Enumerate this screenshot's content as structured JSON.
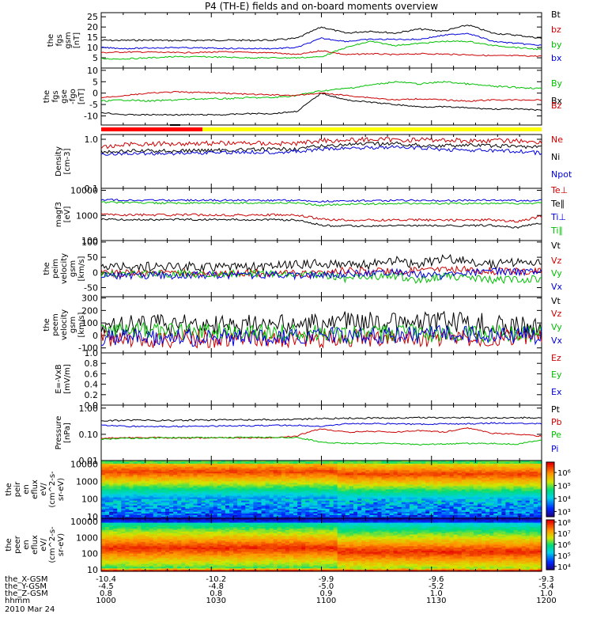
{
  "title": "P4 (TH-E) fields and on-board moments overview",
  "chart_data": [
    {
      "type": "line",
      "ylabel": [
        "the",
        "fgs",
        "gsm",
        "[nT]"
      ],
      "yticks": [
        5,
        10,
        15,
        20,
        25
      ],
      "ylim": [
        0,
        27
      ],
      "scale": "linear",
      "series": [
        {
          "name": "Bt",
          "color": "#000000",
          "y": [
            13.5,
            13.5,
            13.6,
            13.4,
            13.5,
            13.6,
            13.5,
            13.6,
            14.5,
            20,
            17,
            18,
            17,
            19,
            18,
            21,
            17,
            16,
            14.5
          ]
        },
        {
          "name": "bz",
          "color": "#cc0000",
          "y": [
            7.5,
            7.8,
            7.8,
            7.5,
            7.6,
            7.9,
            7.6,
            7.5,
            6.5,
            8.5,
            6.5,
            7,
            6.5,
            7,
            6.8,
            6.5,
            6,
            6,
            5.8
          ]
        },
        {
          "name": "by",
          "color": "#00c000",
          "y": [
            4.5,
            4.5,
            5,
            5.5,
            5.5,
            5.3,
            5,
            5,
            5,
            5.5,
            10,
            13,
            11,
            12,
            13,
            13,
            11,
            10,
            9
          ]
        },
        {
          "name": "bx",
          "color": "#0000dd",
          "y": [
            10,
            9.5,
            9.8,
            10,
            9.8,
            9.6,
            9.5,
            9.5,
            10,
            14.5,
            13,
            14,
            14,
            14,
            16,
            17,
            13,
            12,
            11
          ]
        }
      ]
    },
    {
      "type": "line",
      "ylabel": [
        "the",
        "fgs",
        "gse",
        "-fgo",
        "[nT]"
      ],
      "yticks": [
        -10,
        -5,
        0,
        5,
        10
      ],
      "ylim": [
        -14,
        11
      ],
      "scale": "linear",
      "series": [
        {
          "name": "By",
          "color": "#00c000",
          "y": [
            -3.5,
            -3,
            -3.5,
            -3,
            -2.5,
            -2.5,
            -2,
            -2,
            -1,
            1,
            2,
            3.5,
            5,
            4,
            5,
            4,
            3,
            2.5,
            2
          ]
        },
        {
          "name": "Bx",
          "color": "#000000",
          "y": [
            -8.5,
            -9.5,
            -9.5,
            -9.5,
            -9.5,
            -9.5,
            -9,
            -9,
            -8,
            0,
            -3,
            -4,
            -5,
            -6,
            -6,
            -6.5,
            -7,
            -7,
            -7.5
          ]
        },
        {
          "name": "Bz",
          "color": "#cc0000",
          "y": [
            -2,
            -1,
            0,
            0.5,
            0.3,
            0,
            -0.5,
            -0.8,
            -1,
            0,
            -1,
            -2,
            -3,
            -2.5,
            -3,
            -3.5,
            -3,
            -3,
            -3
          ]
        }
      ]
    },
    {
      "type": "line",
      "ylabel": [
        "Density",
        "[cm-3]"
      ],
      "yticks": [
        0.1,
        1.0
      ],
      "ylim": [
        0.1,
        1.25
      ],
      "scale": "log",
      "series": [
        {
          "name": "Ne",
          "color": "#cc0000",
          "y": [
            0.65,
            0.8,
            0.8,
            0.82,
            0.83,
            0.83,
            0.84,
            0.82,
            0.82,
            0.95,
            0.95,
            1.0,
            0.97,
            0.98,
            0.97,
            0.93,
            0.94,
            0.93,
            0.88
          ]
        },
        {
          "name": "Ni",
          "color": "#000000",
          "y": [
            0.55,
            0.57,
            0.58,
            0.58,
            0.59,
            0.6,
            0.61,
            0.62,
            0.64,
            0.72,
            0.78,
            0.8,
            0.82,
            0.75,
            0.74,
            0.76,
            0.73,
            0.72,
            0.68
          ]
        },
        {
          "name": "Npot",
          "color": "#0000dd",
          "y": [
            0.5,
            0.51,
            0.51,
            0.52,
            0.53,
            0.54,
            0.55,
            0.55,
            0.56,
            0.62,
            0.66,
            0.68,
            0.69,
            0.66,
            0.62,
            0.6,
            0.58,
            0.57,
            0.52
          ]
        }
      ]
    },
    {
      "type": "line",
      "ylabel": [
        "magf3",
        "[eV]"
      ],
      "yticks": [
        100,
        1000,
        10000
      ],
      "ylim": [
        100,
        12000
      ],
      "scale": "log",
      "series": [
        {
          "name": "Te⊥",
          "color": "#cc0000",
          "y": [
            1100,
            1050,
            1050,
            1050,
            1050,
            1040,
            1040,
            1050,
            1000,
            700,
            650,
            650,
            660,
            660,
            650,
            650,
            660,
            560,
            900
          ]
        },
        {
          "name": "Te∥",
          "color": "#000000",
          "y": [
            700,
            680,
            680,
            690,
            690,
            680,
            680,
            680,
            650,
            400,
            380,
            380,
            390,
            390,
            390,
            390,
            400,
            330,
            500
          ]
        },
        {
          "name": "Ti⊥",
          "color": "#0000dd",
          "y": [
            4200,
            4100,
            4000,
            4000,
            4000,
            4000,
            4000,
            4000,
            4000,
            3600,
            3800,
            3900,
            3900,
            3950,
            3900,
            4000,
            4000,
            3900,
            4000
          ]
        },
        {
          "name": "Ti∥",
          "color": "#00c000",
          "y": [
            3300,
            3200,
            3100,
            3100,
            3100,
            3150,
            3150,
            3150,
            3100,
            2500,
            2800,
            2900,
            2950,
            3000,
            3000,
            3000,
            3050,
            2900,
            3100
          ]
        }
      ]
    },
    {
      "type": "line",
      "ylabel": [
        "the",
        "peim",
        "velocity",
        "gsm",
        "[km/s]"
      ],
      "yticks": [
        -50,
        0,
        50,
        100
      ],
      "ylim": [
        -80,
        105
      ],
      "scale": "linear",
      "series": [
        {
          "name": "Vt",
          "color": "#000000",
          "y": [
            22,
            18,
            20,
            18,
            19,
            20,
            18,
            20,
            24,
            32,
            24,
            25,
            38,
            26,
            45,
            38,
            24,
            35,
            30
          ]
        },
        {
          "name": "Vz",
          "color": "#cc0000",
          "y": [
            0,
            -3,
            -4,
            -2,
            -3,
            -5,
            -2,
            -3,
            -3,
            -5,
            8,
            2,
            5,
            8,
            10,
            8,
            5,
            3,
            8
          ]
        },
        {
          "name": "Vy",
          "color": "#00c000",
          "y": [
            -8,
            -6,
            -5,
            -5,
            -5,
            -3,
            -5,
            -5,
            -6,
            -10,
            -20,
            -15,
            -10,
            -25,
            -12,
            -20,
            -25,
            -22,
            -22
          ]
        },
        {
          "name": "Vx",
          "color": "#0000dd",
          "y": [
            -12,
            -10,
            -10,
            -9,
            -9,
            -9,
            -9,
            -8,
            -9,
            -10,
            -5,
            -2,
            0,
            -5,
            -12,
            0,
            2,
            3,
            -2
          ]
        }
      ]
    },
    {
      "type": "line",
      "ylabel": [
        "the",
        "peem",
        "velocity",
        "gsm",
        "[km/s]"
      ],
      "yticks": [
        -100,
        0,
        100,
        200,
        300
      ],
      "ylim": [
        -140,
        310
      ],
      "scale": "linear",
      "series": [
        {
          "name": "Vt",
          "color": "#000000",
          "y": [
            80,
            85,
            90,
            80,
            85,
            85,
            80,
            85,
            90,
            100,
            110,
            105,
            110,
            100,
            115,
            100,
            90,
            90,
            85
          ]
        },
        {
          "name": "Vz",
          "color": "#cc0000",
          "y": [
            -30,
            -25,
            -30,
            -28,
            -30,
            -25,
            -30,
            -28,
            -30,
            -35,
            -20,
            -25,
            -20,
            -25,
            -15,
            -25,
            -20,
            -15,
            -20
          ]
        },
        {
          "name": "Vy",
          "color": "#00c000",
          "y": [
            30,
            35,
            30,
            40,
            35,
            30,
            35,
            30,
            25,
            20,
            0,
            10,
            15,
            20,
            10,
            20,
            10,
            15,
            20
          ]
        },
        {
          "name": "Vx",
          "color": "#0000dd",
          "y": [
            -20,
            -15,
            -20,
            -18,
            -20,
            -15,
            -20,
            -18,
            -15,
            -10,
            0,
            -5,
            5,
            0,
            10,
            5,
            10,
            5,
            0
          ]
        }
      ]
    },
    {
      "type": "line",
      "ylabel": [
        "E=-VxB",
        "[mV/m]"
      ],
      "yticks": [
        0.0,
        0.2,
        0.4,
        0.6,
        0.8,
        1.0
      ],
      "ylim": [
        0,
        1.0
      ],
      "scale": "linear",
      "series": [
        {
          "name": "Ez",
          "color": "#cc0000",
          "y": []
        },
        {
          "name": "Ey",
          "color": "#00c000",
          "y": []
        },
        {
          "name": "Ex",
          "color": "#0000dd",
          "y": []
        }
      ]
    },
    {
      "type": "line",
      "ylabel": [
        "Pressure",
        "[nPa]"
      ],
      "yticks": [
        0.01,
        0.1,
        1.0
      ],
      "ylim": [
        0.01,
        1.3
      ],
      "scale": "log",
      "series": [
        {
          "name": "Pt",
          "color": "#000000",
          "y": [
            0.33,
            0.34,
            0.34,
            0.34,
            0.35,
            0.35,
            0.36,
            0.36,
            0.37,
            0.4,
            0.41,
            0.42,
            0.42,
            0.43,
            0.43,
            0.43,
            0.43,
            0.43,
            0.43
          ]
        },
        {
          "name": "Pb",
          "color": "#cc0000",
          "y": [
            0.07,
            0.075,
            0.075,
            0.073,
            0.073,
            0.075,
            0.073,
            0.075,
            0.085,
            0.16,
            0.12,
            0.13,
            0.12,
            0.14,
            0.12,
            0.17,
            0.11,
            0.1,
            0.085
          ]
        },
        {
          "name": "Pe",
          "color": "#00c000",
          "y": [
            0.065,
            0.07,
            0.073,
            0.075,
            0.075,
            0.075,
            0.077,
            0.077,
            0.075,
            0.05,
            0.045,
            0.045,
            0.045,
            0.04,
            0.043,
            0.045,
            0.045,
            0.042,
            0.06
          ]
        },
        {
          "name": "Pi",
          "color": "#0000dd",
          "y": [
            0.22,
            0.2,
            0.2,
            0.2,
            0.2,
            0.21,
            0.21,
            0.22,
            0.22,
            0.2,
            0.25,
            0.26,
            0.25,
            0.24,
            0.25,
            0.25,
            0.27,
            0.26,
            0.25
          ]
        }
      ]
    },
    {
      "type": "heatmap",
      "ylabel": [
        "the",
        "peir",
        "en",
        "eflux",
        "eV/",
        "(cm^2-s-",
        "sr-eV)"
      ],
      "yticks": [
        10,
        100,
        1000,
        10000
      ],
      "ylim": [
        8,
        16000
      ],
      "scale": "log",
      "colorbar": {
        "ticks": [
          "10³",
          "10⁴",
          "10⁵",
          "10⁶"
        ],
        "min_exp": 2.6,
        "max_exp": 6.8
      }
    },
    {
      "type": "heatmap",
      "ylabel": [
        "the",
        "peer",
        "en",
        "eflux",
        "eV/",
        "(cm^2-s-",
        "sr-eV)"
      ],
      "yticks": [
        10,
        100,
        1000,
        10000
      ],
      "ylim": [
        8,
        16000
      ],
      "scale": "log",
      "colorbar": {
        "ticks": [
          "10⁴",
          "10⁵",
          "10⁶",
          "10⁷",
          "10⁸"
        ],
        "min_exp": 3.7,
        "max_exp": 8.2
      }
    }
  ],
  "labels_right": [
    [
      "Bt",
      "bz",
      "by",
      "bx"
    ],
    [
      "By",
      "Bx",
      "Bz"
    ],
    [
      "Ne",
      "Ni",
      "Npot"
    ],
    [
      "Te⊥",
      "Te∥",
      "Ti⊥",
      "Ti∥"
    ],
    [
      "Vt",
      "Vz",
      "Vy",
      "Vx"
    ],
    [
      "Vt",
      "Vz",
      "Vy",
      "Vx"
    ],
    [
      "Ez",
      "Ey",
      "Ex"
    ],
    [
      "Pt",
      "Pb",
      "Pe",
      "Pi"
    ]
  ],
  "x_axis": {
    "row_labels": [
      "the_X-GSM",
      "the_Y-GSM",
      "the_Z-GSM",
      "hhmm",
      "2010 Mar 24"
    ],
    "ticks": [
      {
        "x": "-10.4",
        "y": "-4.5",
        "z": "0.8",
        "t": "1000"
      },
      {
        "x": "-10.2",
        "y": "-4.8",
        "z": "0.8",
        "t": "1030"
      },
      {
        "x": "-9.9",
        "y": "-5.0",
        "z": "0.9",
        "t": "1100"
      },
      {
        "x": "-9.6",
        "y": "-5.2",
        "z": "1.0",
        "t": "1130"
      },
      {
        "x": "-9.3",
        "y": "-5.4",
        "z": "1.0",
        "t": "1200"
      }
    ]
  },
  "mode_bar": {
    "red_until": "1023",
    "yellow_after": "1023"
  }
}
